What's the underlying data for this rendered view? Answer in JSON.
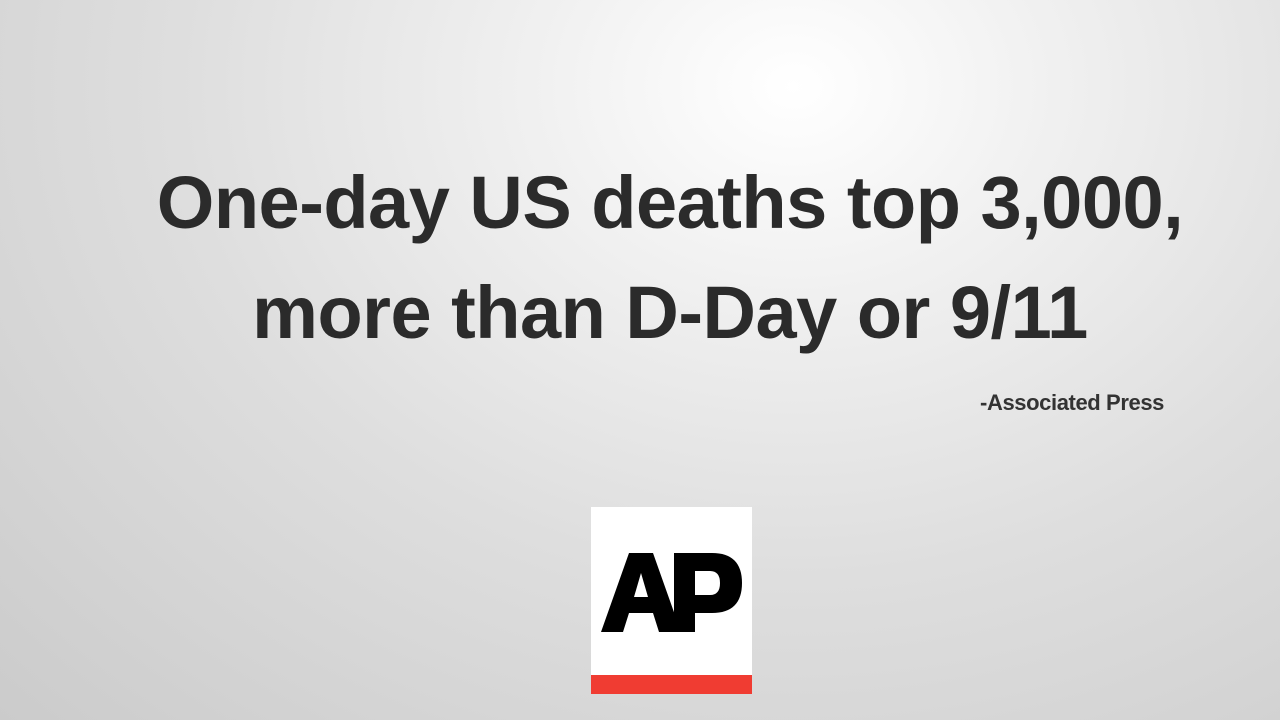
{
  "slide": {
    "headline_line1": "One-day US deaths top 3,000,",
    "headline_line2": "more than D-Day or 9/11",
    "attribution": "-Associated Press"
  },
  "logo": {
    "text": "AP",
    "icon": "ap-logo-icon",
    "bar_color": "#f03c32",
    "letter_color": "#000000",
    "background_color": "#ffffff"
  },
  "colors": {
    "headline_text": "#2b2b2b",
    "background_center": "#ffffff",
    "background_edge": "#cbcbcb"
  }
}
